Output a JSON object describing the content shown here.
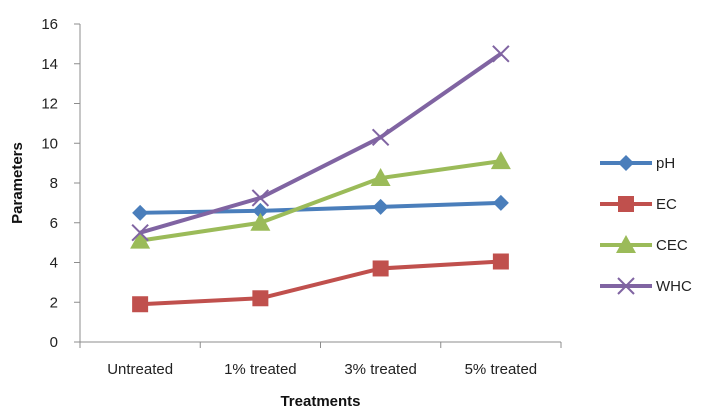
{
  "chart_data": {
    "type": "line",
    "categories": [
      "Untreated",
      "1% treated",
      "3% treated",
      "5% treated"
    ],
    "series": [
      {
        "name": "pH",
        "values": [
          6.5,
          6.6,
          6.8,
          7.0
        ],
        "color": "#4a7ebb",
        "marker": "diamond"
      },
      {
        "name": "EC",
        "values": [
          1.9,
          2.2,
          3.7,
          4.05
        ],
        "color": "#c0504d",
        "marker": "square"
      },
      {
        "name": "CEC",
        "values": [
          5.1,
          6.0,
          8.25,
          9.1
        ],
        "color": "#9bbb59",
        "marker": "triangle"
      },
      {
        "name": "WHC",
        "values": [
          5.5,
          7.25,
          10.3,
          14.5
        ],
        "color": "#8064a2",
        "marker": "x"
      }
    ],
    "xlabel": "Treatments",
    "ylabel": "Parameters",
    "ylim": [
      0,
      16
    ],
    "yticks": [
      "0",
      "2",
      "4",
      "6",
      "8",
      "10",
      "12",
      "14",
      "16"
    ],
    "grid": false,
    "legend": "right"
  }
}
